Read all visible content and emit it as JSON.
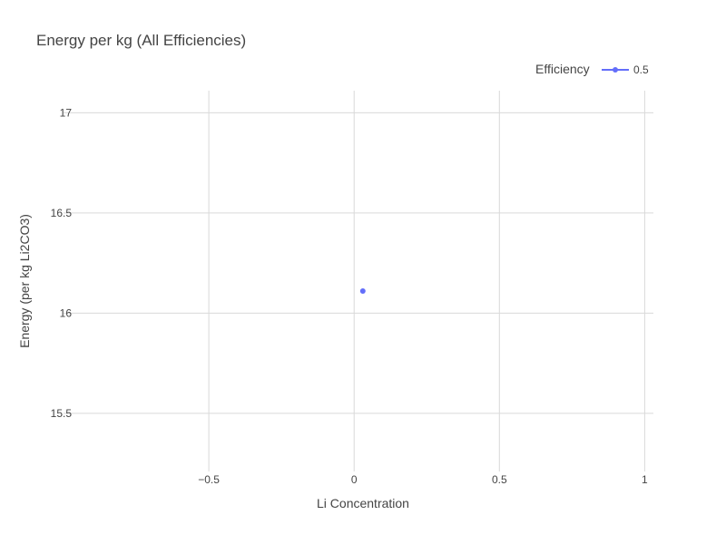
{
  "chart_data": {
    "type": "scatter",
    "title": "Energy per kg (All Efficiencies)",
    "xlabel": "Li Concentration",
    "ylabel": "Energy (per kg Li2CO3)",
    "xlim": [
      -1.0,
      1.03
    ],
    "ylim": [
      15.21,
      17.11
    ],
    "xticks": [
      -0.5,
      0,
      0.5,
      1
    ],
    "xtick_labels": [
      "−0.5",
      "0",
      "0.5",
      "1"
    ],
    "yticks": [
      15.5,
      16,
      16.5,
      17
    ],
    "ytick_labels": [
      "15.5",
      "16",
      "16.5",
      "17"
    ],
    "grid": true,
    "legend": {
      "title": "Efficiency",
      "placement": "top-right",
      "orientation": "horizontal"
    },
    "series": [
      {
        "name": "0.5",
        "color": "#636efa",
        "mode": "lines+markers",
        "points": [
          {
            "x": 0.03,
            "y": 16.11
          }
        ]
      }
    ]
  }
}
